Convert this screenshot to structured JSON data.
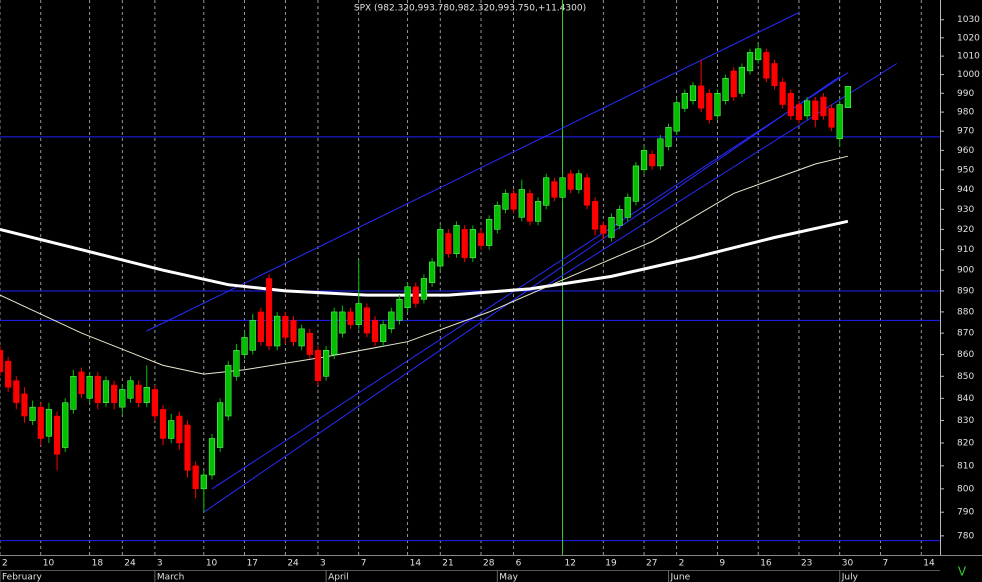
{
  "chart_data": {
    "type": "candlestick",
    "title": "SPX (982.320,993.780,982.320,993.750,+11.4300)",
    "log_scale": true,
    "grid": true,
    "xlim": [
      0,
      115.3
    ],
    "ylim": [
      772,
      1041
    ],
    "yticks": [
      780,
      790,
      800,
      810,
      820,
      830,
      840,
      850,
      860,
      870,
      880,
      890,
      900,
      910,
      920,
      930,
      940,
      950,
      960,
      970,
      980,
      990,
      1000,
      1010,
      1020,
      1030
    ],
    "xticks": [
      {
        "value": 0,
        "label": "2"
      },
      {
        "value": 5,
        "label": "10"
      },
      {
        "value": 11,
        "label": "18"
      },
      {
        "value": 15,
        "label": "24"
      },
      {
        "value": 19,
        "label": "3"
      },
      {
        "value": 25,
        "label": "10"
      },
      {
        "value": 30,
        "label": "17"
      },
      {
        "value": 35,
        "label": "24"
      },
      {
        "value": 39,
        "label": "3"
      },
      {
        "value": 44,
        "label": "7"
      },
      {
        "value": 50,
        "label": "14"
      },
      {
        "value": 54,
        "label": "21"
      },
      {
        "value": 59,
        "label": "28"
      },
      {
        "value": 63,
        "label": "6"
      },
      {
        "value": 69,
        "label": "12"
      },
      {
        "value": 74,
        "label": "19"
      },
      {
        "value": 79,
        "label": "27"
      },
      {
        "value": 83,
        "label": "2"
      },
      {
        "value": 88,
        "label": "9"
      },
      {
        "value": 93,
        "label": "16"
      },
      {
        "value": 98,
        "label": "23"
      },
      {
        "value": 103,
        "label": "30"
      },
      {
        "value": 108,
        "label": "7"
      },
      {
        "value": 113,
        "label": "14"
      }
    ],
    "month_ticks": [
      {
        "value": 0,
        "label": "February"
      },
      {
        "value": 19,
        "label": "March"
      },
      {
        "value": 40,
        "label": "April"
      },
      {
        "value": 61,
        "label": "May"
      },
      {
        "value": 82,
        "label": "June"
      },
      {
        "value": 103,
        "label": "July"
      }
    ],
    "up_color": "#00c000",
    "down_color": "#ff0000",
    "open": [
      862,
      857,
      848,
      842,
      830,
      836,
      823,
      832,
      818,
      835,
      852,
      840,
      850,
      838,
      846,
      836,
      840,
      846,
      838,
      844,
      835,
      822,
      832,
      828,
      810,
      800,
      806,
      818,
      832,
      850,
      860,
      862,
      880,
      896,
      864,
      878,
      876,
      864,
      870,
      862,
      850,
      860,
      870,
      880,
      874,
      882,
      876,
      866,
      872,
      876,
      882,
      892,
      886,
      894,
      902,
      918,
      908,
      920,
      906,
      918,
      912,
      920,
      930,
      938,
      926,
      938,
      924,
      932,
      944,
      936,
      948,
      940,
      946,
      934,
      922,
      916,
      922,
      926,
      934,
      950,
      958,
      952,
      962,
      970,
      982,
      986,
      994,
      990,
      978,
      986,
      1002,
      990,
      1002,
      1008,
      1012,
      1006,
      996,
      990,
      984,
      978,
      986,
      988,
      982,
      966,
      982.32
    ],
    "high": [
      864,
      859,
      850,
      845,
      839,
      838,
      838,
      834,
      840,
      853,
      854,
      852,
      852,
      850,
      848,
      846,
      850,
      848,
      855,
      846,
      837,
      833,
      834,
      830,
      812,
      808,
      824,
      840,
      857,
      865,
      871,
      879,
      882,
      898,
      880,
      880,
      878,
      874,
      872,
      864,
      864,
      882,
      883,
      882,
      905,
      884,
      878,
      876,
      882,
      888,
      894,
      894,
      898,
      906,
      922,
      920,
      924,
      922,
      922,
      920,
      927,
      934,
      940,
      940,
      945,
      940,
      936,
      948,
      946,
      948,
      950,
      950,
      948,
      936,
      924,
      928,
      932,
      938,
      954,
      962,
      960,
      968,
      974,
      987,
      992,
      996,
      1008,
      992,
      992,
      1000,
      1004,
      1006,
      1014,
      1017,
      1014,
      1008,
      998,
      992,
      986,
      988,
      988,
      990,
      984,
      986,
      993.78
    ],
    "low": [
      850,
      843,
      835,
      829,
      828,
      819,
      820,
      808,
      816,
      833,
      840,
      838,
      835,
      836,
      835,
      833,
      838,
      836,
      836,
      830,
      819,
      820,
      817,
      805,
      796,
      790,
      804,
      816,
      830,
      848,
      858,
      860,
      864,
      862,
      862,
      865,
      864,
      862,
      858,
      846,
      848,
      858,
      868,
      872,
      872,
      868,
      864,
      864,
      870,
      874,
      880,
      882,
      884,
      892,
      900,
      906,
      906,
      904,
      904,
      910,
      910,
      918,
      928,
      928,
      924,
      922,
      922,
      930,
      934,
      934,
      938,
      938,
      930,
      917,
      915,
      914,
      920,
      924,
      932,
      948,
      950,
      950,
      960,
      968,
      980,
      984,
      980,
      974,
      976,
      984,
      986,
      988,
      1000,
      1006,
      996,
      992,
      982,
      976,
      974,
      976,
      972,
      976,
      970,
      962,
      982.32
    ],
    "close": [
      852,
      845,
      838,
      832,
      836,
      822,
      835,
      815,
      838,
      850,
      842,
      850,
      838,
      848,
      838,
      844,
      848,
      838,
      845,
      832,
      822,
      830,
      820,
      808,
      800,
      806,
      822,
      838,
      855,
      862,
      868,
      876,
      866,
      864,
      878,
      868,
      866,
      872,
      860,
      848,
      862,
      880,
      880,
      874,
      884,
      870,
      866,
      874,
      880,
      886,
      892,
      884,
      896,
      904,
      920,
      908,
      922,
      906,
      920,
      912,
      925,
      932,
      938,
      930,
      940,
      924,
      934,
      946,
      936,
      946,
      940,
      948,
      932,
      920,
      918,
      926,
      930,
      936,
      952,
      960,
      952,
      966,
      972,
      985,
      990,
      994,
      982,
      976,
      990,
      998,
      988,
      1004,
      1012,
      1014,
      998,
      994,
      984,
      978,
      976,
      986,
      976,
      978,
      972,
      984,
      993.75
    ],
    "overlays": [
      {
        "color": "#ffffff",
        "x": [
          0,
          10,
          20,
          28,
          35,
          45,
          55,
          65,
          75,
          85,
          95,
          104
        ],
        "values": [
          920,
          910,
          900,
          893,
          890,
          888,
          888,
          891,
          897,
          906,
          916,
          924
        ]
      },
      {
        "color": "#e8e8d0",
        "x": [
          0,
          10,
          20,
          25,
          30,
          40,
          50,
          60,
          70,
          80,
          90,
          100,
          104
        ],
        "values": [
          888,
          870,
          855,
          851,
          853,
          859,
          866,
          880,
          897,
          914,
          938,
          953,
          957
        ]
      }
    ],
    "levels": [
      967,
      890,
      876,
      778
    ],
    "level_color": "#2020ff",
    "trendlines": [
      {
        "x": [
          18,
          98
        ],
        "values": [
          871,
          1034
        ]
      },
      {
        "x": [
          25,
          103
        ],
        "values": [
          790,
          999
        ]
      },
      {
        "x": [
          26,
          104
        ],
        "values": [
          800,
          1001
        ]
      },
      {
        "x": [
          66,
          110
        ],
        "values": [
          890,
          1006
        ]
      }
    ],
    "trend_color": "#2a2aff",
    "vline": 69,
    "vline_color": "#33cc33",
    "corner_label": "V"
  }
}
